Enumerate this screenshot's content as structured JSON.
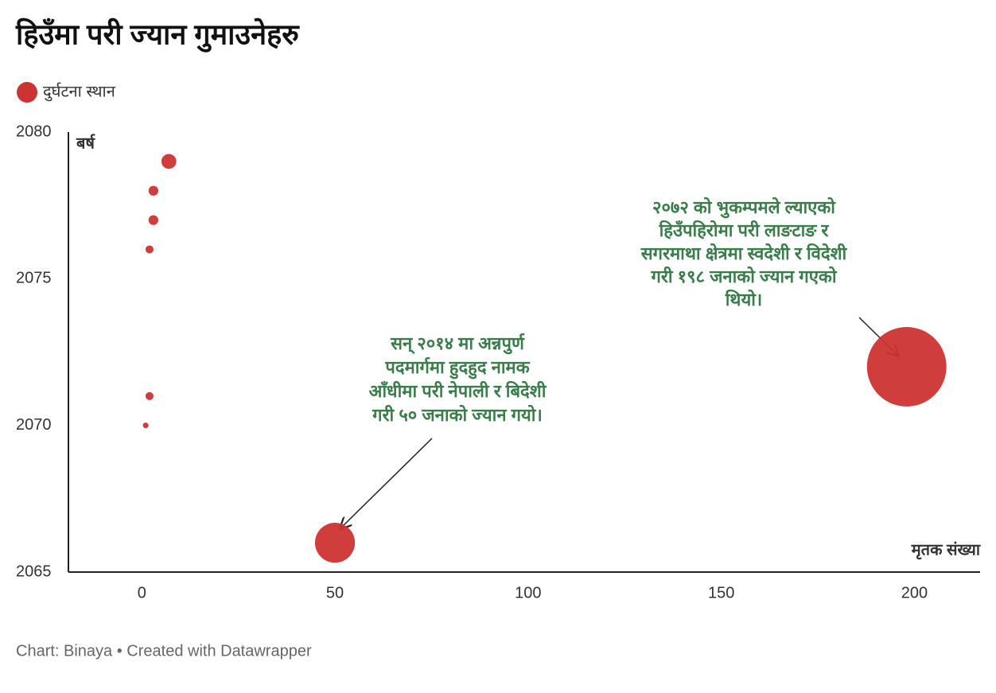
{
  "chart_data": {
    "type": "scatter",
    "title": "हिउँमा परी ज्यान गुमाउनेहरु",
    "legend": "दुर्घटना स्थान",
    "color": "#cc3333",
    "x_label": "मृतक संख्या",
    "y_label": "बर्ष",
    "x": [
      7,
      3,
      3,
      2,
      2,
      1,
      50,
      198
    ],
    "y": [
      2079,
      2078,
      2077,
      2076,
      2071,
      2070,
      2066,
      2072
    ],
    "xlim": [
      -19,
      217
    ],
    "ylim": [
      2065,
      2080
    ],
    "xticks": [
      0,
      50,
      100,
      150,
      200
    ],
    "yticks": [
      2065,
      2070,
      2075,
      2080
    ],
    "annotations": [
      {
        "lines": [
          "२०७२ को भुकम्पमले ल्याएको",
          "हिउँपहिरोमा परी लाङटाङ र",
          "सगरमाथा क्षेत्रमा स्वदेशी र विदेशी",
          "गरी १९८ जनाको ज्यान गएको",
          "थियो।"
        ]
      },
      {
        "lines": [
          "सन् २०१४ मा अन्नपुर्ण",
          "पदमार्गमा हुदहुद नामक",
          "आँधीमा परी नेपाली र बिदेशी",
          "गरी ५० जनाको ज्यान गयो।"
        ]
      }
    ],
    "footer": "Chart: Binaya • Created with Datawrapper"
  }
}
